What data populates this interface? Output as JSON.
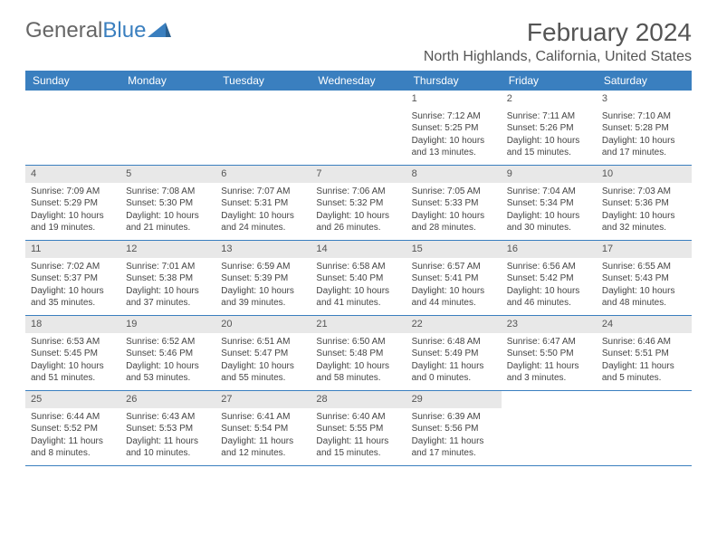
{
  "brand": {
    "part1": "General",
    "part2": "Blue"
  },
  "title": "February 2024",
  "location": "North Highlands, California, United States",
  "colors": {
    "header_bar": "#3a7fbf",
    "day_band": "#e8e8e8",
    "text": "#555555",
    "cell_text": "#444444",
    "background": "#ffffff"
  },
  "fonts": {
    "title_size": 28,
    "location_size": 16,
    "dayhead_size": 12,
    "daynum_size": 11,
    "cell_size": 10
  },
  "day_headers": [
    "Sunday",
    "Monday",
    "Tuesday",
    "Wednesday",
    "Thursday",
    "Friday",
    "Saturday"
  ],
  "weeks": [
    [
      null,
      null,
      null,
      null,
      {
        "n": "1",
        "sunrise": "Sunrise: 7:12 AM",
        "sunset": "Sunset: 5:25 PM",
        "daylight1": "Daylight: 10 hours",
        "daylight2": "and 13 minutes."
      },
      {
        "n": "2",
        "sunrise": "Sunrise: 7:11 AM",
        "sunset": "Sunset: 5:26 PM",
        "daylight1": "Daylight: 10 hours",
        "daylight2": "and 15 minutes."
      },
      {
        "n": "3",
        "sunrise": "Sunrise: 7:10 AM",
        "sunset": "Sunset: 5:28 PM",
        "daylight1": "Daylight: 10 hours",
        "daylight2": "and 17 minutes."
      }
    ],
    [
      {
        "n": "4",
        "sunrise": "Sunrise: 7:09 AM",
        "sunset": "Sunset: 5:29 PM",
        "daylight1": "Daylight: 10 hours",
        "daylight2": "and 19 minutes."
      },
      {
        "n": "5",
        "sunrise": "Sunrise: 7:08 AM",
        "sunset": "Sunset: 5:30 PM",
        "daylight1": "Daylight: 10 hours",
        "daylight2": "and 21 minutes."
      },
      {
        "n": "6",
        "sunrise": "Sunrise: 7:07 AM",
        "sunset": "Sunset: 5:31 PM",
        "daylight1": "Daylight: 10 hours",
        "daylight2": "and 24 minutes."
      },
      {
        "n": "7",
        "sunrise": "Sunrise: 7:06 AM",
        "sunset": "Sunset: 5:32 PM",
        "daylight1": "Daylight: 10 hours",
        "daylight2": "and 26 minutes."
      },
      {
        "n": "8",
        "sunrise": "Sunrise: 7:05 AM",
        "sunset": "Sunset: 5:33 PM",
        "daylight1": "Daylight: 10 hours",
        "daylight2": "and 28 minutes."
      },
      {
        "n": "9",
        "sunrise": "Sunrise: 7:04 AM",
        "sunset": "Sunset: 5:34 PM",
        "daylight1": "Daylight: 10 hours",
        "daylight2": "and 30 minutes."
      },
      {
        "n": "10",
        "sunrise": "Sunrise: 7:03 AM",
        "sunset": "Sunset: 5:36 PM",
        "daylight1": "Daylight: 10 hours",
        "daylight2": "and 32 minutes."
      }
    ],
    [
      {
        "n": "11",
        "sunrise": "Sunrise: 7:02 AM",
        "sunset": "Sunset: 5:37 PM",
        "daylight1": "Daylight: 10 hours",
        "daylight2": "and 35 minutes."
      },
      {
        "n": "12",
        "sunrise": "Sunrise: 7:01 AM",
        "sunset": "Sunset: 5:38 PM",
        "daylight1": "Daylight: 10 hours",
        "daylight2": "and 37 minutes."
      },
      {
        "n": "13",
        "sunrise": "Sunrise: 6:59 AM",
        "sunset": "Sunset: 5:39 PM",
        "daylight1": "Daylight: 10 hours",
        "daylight2": "and 39 minutes."
      },
      {
        "n": "14",
        "sunrise": "Sunrise: 6:58 AM",
        "sunset": "Sunset: 5:40 PM",
        "daylight1": "Daylight: 10 hours",
        "daylight2": "and 41 minutes."
      },
      {
        "n": "15",
        "sunrise": "Sunrise: 6:57 AM",
        "sunset": "Sunset: 5:41 PM",
        "daylight1": "Daylight: 10 hours",
        "daylight2": "and 44 minutes."
      },
      {
        "n": "16",
        "sunrise": "Sunrise: 6:56 AM",
        "sunset": "Sunset: 5:42 PM",
        "daylight1": "Daylight: 10 hours",
        "daylight2": "and 46 minutes."
      },
      {
        "n": "17",
        "sunrise": "Sunrise: 6:55 AM",
        "sunset": "Sunset: 5:43 PM",
        "daylight1": "Daylight: 10 hours",
        "daylight2": "and 48 minutes."
      }
    ],
    [
      {
        "n": "18",
        "sunrise": "Sunrise: 6:53 AM",
        "sunset": "Sunset: 5:45 PM",
        "daylight1": "Daylight: 10 hours",
        "daylight2": "and 51 minutes."
      },
      {
        "n": "19",
        "sunrise": "Sunrise: 6:52 AM",
        "sunset": "Sunset: 5:46 PM",
        "daylight1": "Daylight: 10 hours",
        "daylight2": "and 53 minutes."
      },
      {
        "n": "20",
        "sunrise": "Sunrise: 6:51 AM",
        "sunset": "Sunset: 5:47 PM",
        "daylight1": "Daylight: 10 hours",
        "daylight2": "and 55 minutes."
      },
      {
        "n": "21",
        "sunrise": "Sunrise: 6:50 AM",
        "sunset": "Sunset: 5:48 PM",
        "daylight1": "Daylight: 10 hours",
        "daylight2": "and 58 minutes."
      },
      {
        "n": "22",
        "sunrise": "Sunrise: 6:48 AM",
        "sunset": "Sunset: 5:49 PM",
        "daylight1": "Daylight: 11 hours",
        "daylight2": "and 0 minutes."
      },
      {
        "n": "23",
        "sunrise": "Sunrise: 6:47 AM",
        "sunset": "Sunset: 5:50 PM",
        "daylight1": "Daylight: 11 hours",
        "daylight2": "and 3 minutes."
      },
      {
        "n": "24",
        "sunrise": "Sunrise: 6:46 AM",
        "sunset": "Sunset: 5:51 PM",
        "daylight1": "Daylight: 11 hours",
        "daylight2": "and 5 minutes."
      }
    ],
    [
      {
        "n": "25",
        "sunrise": "Sunrise: 6:44 AM",
        "sunset": "Sunset: 5:52 PM",
        "daylight1": "Daylight: 11 hours",
        "daylight2": "and 8 minutes."
      },
      {
        "n": "26",
        "sunrise": "Sunrise: 6:43 AM",
        "sunset": "Sunset: 5:53 PM",
        "daylight1": "Daylight: 11 hours",
        "daylight2": "and 10 minutes."
      },
      {
        "n": "27",
        "sunrise": "Sunrise: 6:41 AM",
        "sunset": "Sunset: 5:54 PM",
        "daylight1": "Daylight: 11 hours",
        "daylight2": "and 12 minutes."
      },
      {
        "n": "28",
        "sunrise": "Sunrise: 6:40 AM",
        "sunset": "Sunset: 5:55 PM",
        "daylight1": "Daylight: 11 hours",
        "daylight2": "and 15 minutes."
      },
      {
        "n": "29",
        "sunrise": "Sunrise: 6:39 AM",
        "sunset": "Sunset: 5:56 PM",
        "daylight1": "Daylight: 11 hours",
        "daylight2": "and 17 minutes."
      },
      null,
      null
    ]
  ]
}
